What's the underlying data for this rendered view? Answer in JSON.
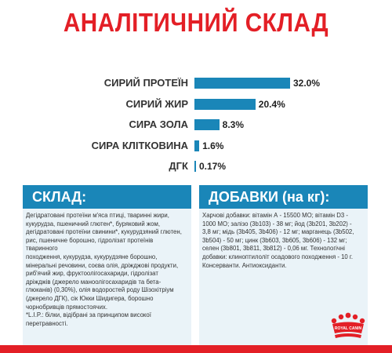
{
  "title": "АНАЛІТИЧНИЙ СКЛАД",
  "analysis": [
    {
      "label": "СИРИЙ ПРОТЕЇН",
      "value": 32.0,
      "display": "32.0%"
    },
    {
      "label": "СИРИЙ ЖИР",
      "value": 20.4,
      "display": "20.4%"
    },
    {
      "label": "СИРА ЗОЛА",
      "value": 8.3,
      "display": "8.3%"
    },
    {
      "label": "СИРА КЛІТКОВИНА",
      "value": 1.6,
      "display": "1.6%"
    },
    {
      "label": "ДГК",
      "value": 0.17,
      "display": "0.17%"
    }
  ],
  "composition": {
    "header": "СКЛАД:",
    "text": "Дегідратовані протеїни м'яса птиці, тваринні жири,\nкукурудза, пшеничний глютен*, буряковий жом,\nдегідратовані протеїни свинини*, кукурудзяний глютен,\nрис, пшеничне борошно, гідролізат протеїнів тваринного\nпоходження, кукурудза, кукурудзяне борошно,\nмінеральні речовини, соєва олія, дріжджові продукти,\nриб'ячий жир, фруктоолігосахариди, гідролізат\nдріжджів (джерело маноолігосахаридів та бета-\nглюканів) (0,30%), олія водоростей роду Шізохітріум\n(джерело ДГК), сік Юкки Шидигера, борошно\nчорнобривців прямостоячих.\n*L.I.P.: білки, відібрані за принципом високої\nперетравності."
  },
  "additives": {
    "header": "ДОБАВКИ (на кг):",
    "text": "Харчові добавки: вітамін А - 15500 МО; вітамін D3 -\n1000 МО; залізо (3b103) - 38 мг; йод (3b201, 3b202) -\n3,8 мг; мідь (3b405, 3b406) - 12 мг; марганець (3b502,\n3b504) - 50 мг; цинк (3b603, 3b605, 3b606) - 132 мг;\nселен (3b801, 3b811, 3b812) - 0,06 мг. Технологічні\nдобавки: клиноптилоліт осадового походження - 10 г.\nКонсерванти. Антиоксиданти."
  },
  "colors": {
    "brand_red": "#e31f26",
    "bar_blue": "#1a86b8"
  },
  "logo_icon": "royal-canin-crown-logo"
}
